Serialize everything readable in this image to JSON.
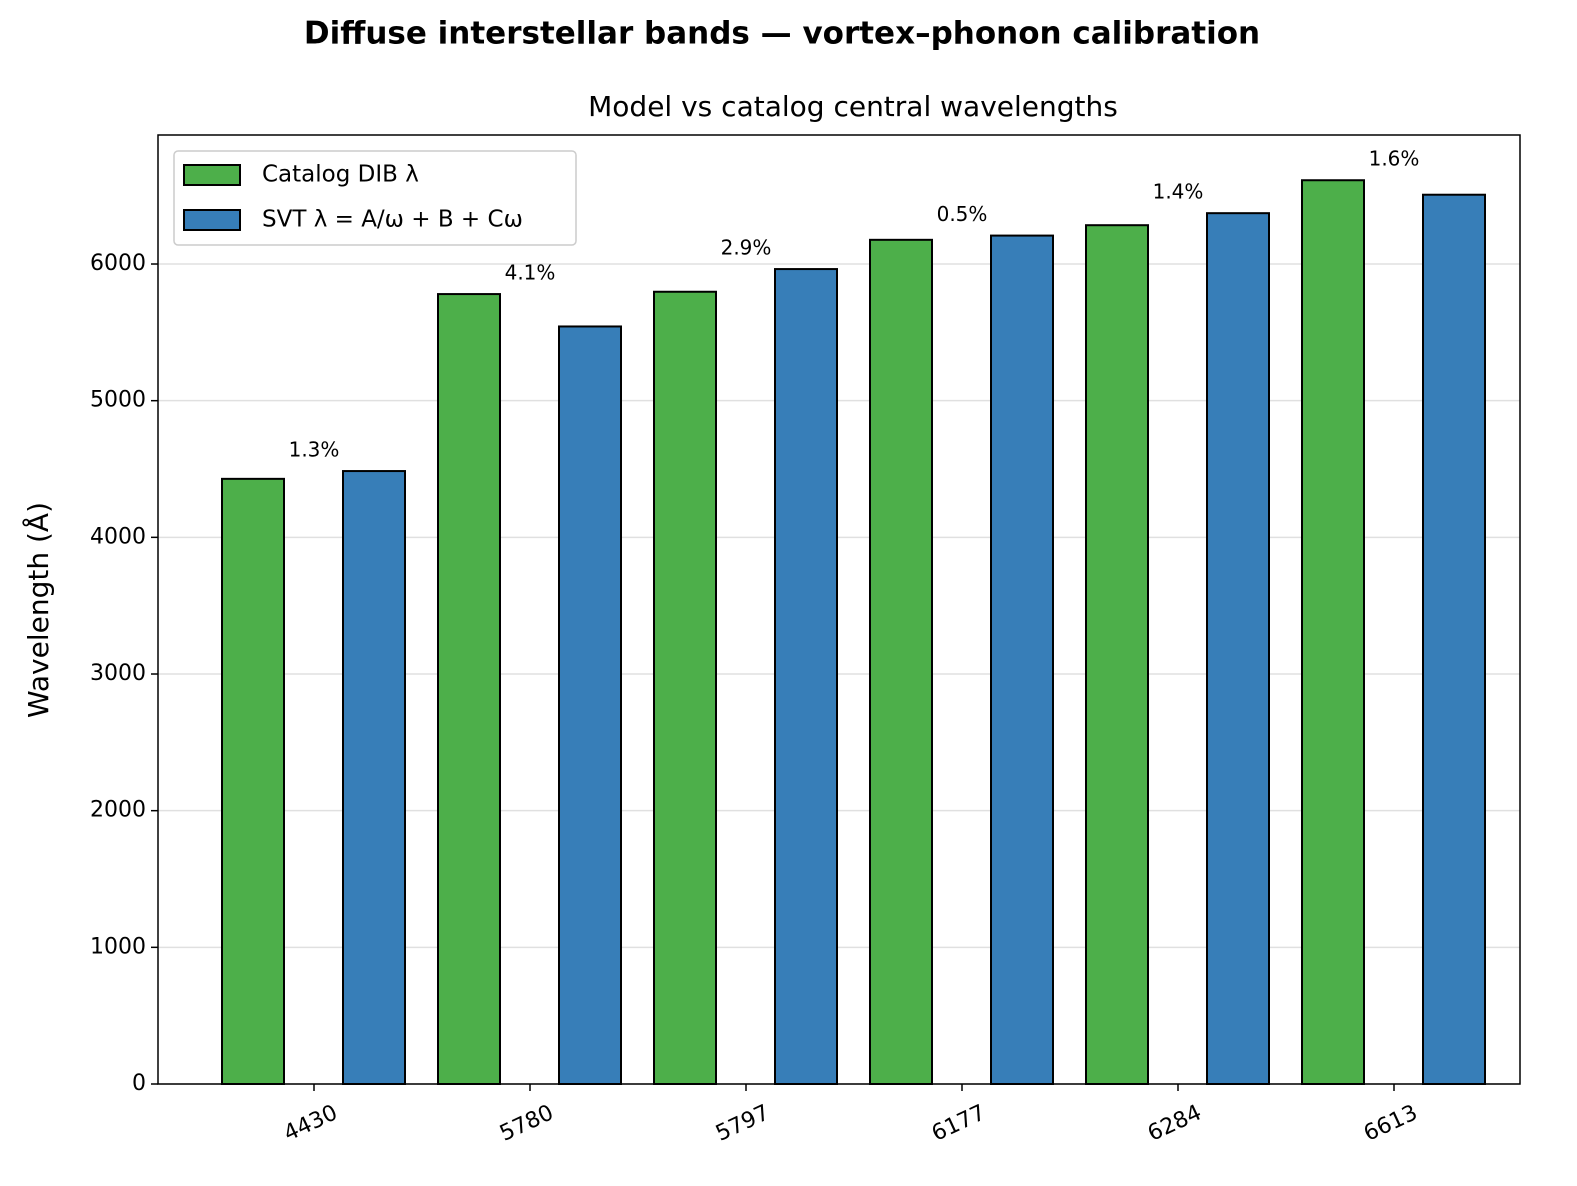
{
  "chart_data": {
    "type": "bar",
    "title": "Diffuse interstellar bands — vortex–phonon calibration",
    "subtitle": "Model vs catalog central wavelengths",
    "y_label": "Wavelength (Å)",
    "categories": [
      "4430",
      "5780",
      "5797",
      "6177",
      "6284",
      "6613"
    ],
    "series": [
      {
        "name": "Catalog DIB λ",
        "color": "#4daf4a",
        "values": [
          4428,
          5780,
          5797,
          6177,
          6284,
          6613
        ]
      },
      {
        "name": "SVT  λ = A/ω + B + Cω",
        "color": "#377eb8",
        "values": [
          4485,
          5543,
          5963,
          6208,
          6372,
          6507
        ]
      }
    ],
    "errors": {
      "values": [
        1.3,
        4.1,
        2.9,
        0.5,
        1.4,
        1.6
      ],
      "value_labels": [
        "1.3%",
        "4.1%",
        "2.9%",
        "0.5%",
        "1.4%",
        "1.6%"
      ]
    },
    "ylim": [
      0,
      6944
    ],
    "yticks": [
      0,
      1000,
      2000,
      3000,
      4000,
      5000,
      6000
    ],
    "grid": true,
    "legend": "upper left"
  }
}
